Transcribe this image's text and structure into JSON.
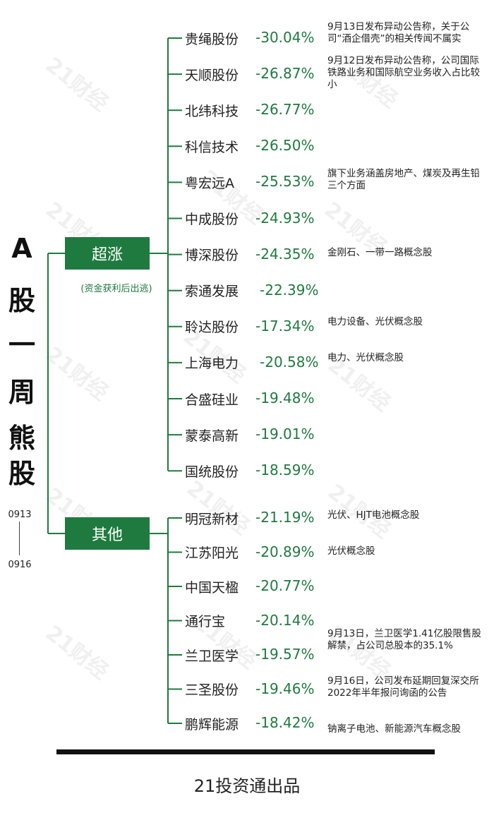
{
  "title_chars": [
    "A",
    "股",
    "一",
    "周",
    "熊",
    "股"
  ],
  "date_start": "0913",
  "date_end": "0916",
  "categories": [
    {
      "label": "超涨",
      "note": "(资金获利后出逃)"
    },
    {
      "label": "其他"
    }
  ],
  "group1": [
    {
      "name": "贵绳股份",
      "change": "-30.04%",
      "desc": "9月13日发布异动公告称，关于公司“酒企借壳”的相关传闻不属实"
    },
    {
      "name": "天顺股份",
      "change": "-26.87%",
      "desc": "9月12日发布异动公告称，公司国际铁路业务和国际航空业务收入占比较小"
    },
    {
      "name": "北纬科技",
      "change": "-26.77%",
      "desc": ""
    },
    {
      "name": "科信技术",
      "change": "-26.50%",
      "desc": ""
    },
    {
      "name": "粤宏远A",
      "change": "-25.53%",
      "desc": "旗下业务涵盖房地产、煤炭及再生铅三个方面"
    },
    {
      "name": "中成股份",
      "change": "-24.93%",
      "desc": ""
    },
    {
      "name": "博深股份",
      "change": "-24.35%",
      "desc": "金刚石、一带一路概念股"
    },
    {
      "name": "索通发展",
      "change": "-22.39%",
      "desc": ""
    },
    {
      "name": "聆达股份",
      "change": "-17.34%",
      "desc": "电力设备、光伏概念股"
    },
    {
      "name": "上海电力",
      "change": "-20.58%",
      "desc": "电力、光伏概念股"
    },
    {
      "name": "合盛硅业",
      "change": "-19.48%",
      "desc": ""
    },
    {
      "name": "蒙泰高新",
      "change": "-19.01%",
      "desc": ""
    },
    {
      "name": "国统股份",
      "change": "-18.59%",
      "desc": ""
    }
  ],
  "group2": [
    {
      "name": "明冠新材",
      "change": "-21.19%",
      "desc": "光伏、HJT电池概念股"
    },
    {
      "name": "江苏阳光",
      "change": "-20.89%",
      "desc": "光伏概念股"
    },
    {
      "name": "中国天楹",
      "change": "-20.77%",
      "desc": ""
    },
    {
      "name": "通行宝",
      "change": "-20.14%",
      "desc": ""
    },
    {
      "name": "兰卫医学",
      "change": "-19.57%",
      "desc": "9月13日，兰卫医学1.41亿股限售股解禁，占公司总股本的35.1%"
    },
    {
      "name": "三圣股份",
      "change": "-19.46%",
      "desc": "9月16日，公司发布延期回复深交所2022年半年报问询函的公告"
    },
    {
      "name": "鹏辉能源",
      "change": "-18.42%",
      "desc": "钠离子电池、新能源汽车概念股"
    }
  ],
  "watermark": "21财经",
  "footer": "21投资通出品",
  "colors": {
    "accent": "#1f7a3f",
    "text": "#222222"
  }
}
